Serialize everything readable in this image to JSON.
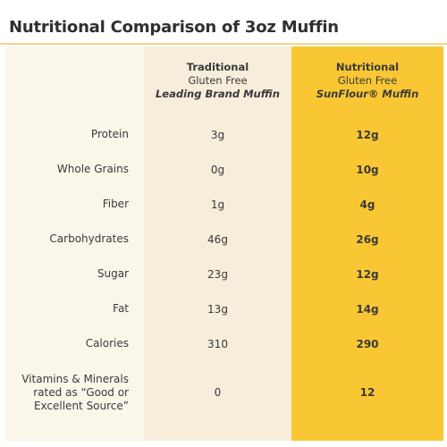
{
  "title": "Nutritional Comparison of 3oz Muffin",
  "colors": {
    "title_rule": "#f2d58c",
    "background": "#fbf6ea",
    "traditional_column": "#f6eddb",
    "sunflour_column": "#f9c734"
  },
  "columns": {
    "traditional": {
      "line1": "Traditional",
      "line2": "Gluten Free",
      "line3": "Leading Brand Muffin"
    },
    "sunflour": {
      "line1": "Nutritional",
      "line2": "Gluten Free",
      "line3": "SunFlour® Muffin"
    }
  },
  "rows": [
    {
      "label": "Protein",
      "traditional": "3g",
      "sunflour": "12g"
    },
    {
      "label": "Whole Grains",
      "traditional": "0g",
      "sunflour": "10g"
    },
    {
      "label": "Fiber",
      "traditional": "1g",
      "sunflour": "4g"
    },
    {
      "label": "Carbohydrates",
      "traditional": "46g",
      "sunflour": "26g"
    },
    {
      "label": "Sugar",
      "traditional": "23g",
      "sunflour": "12g"
    },
    {
      "label": "Fat",
      "traditional": "13g",
      "sunflour": "14g"
    },
    {
      "label": "Calories",
      "traditional": "310",
      "sunflour": "290"
    },
    {
      "label": "Vitamins & Minerals rated as “Good or Excellent Source”",
      "traditional": "0",
      "sunflour": "12"
    }
  ]
}
